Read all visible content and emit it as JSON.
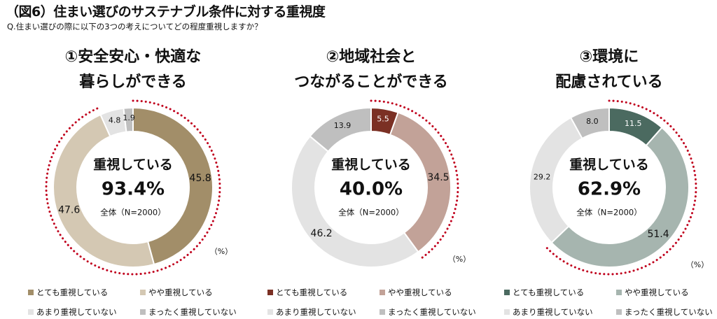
{
  "title": "（図6）住まい選びのサステナブル条件に対する重視度",
  "question": "Q.住まい選びの際に以下の3つの考えについてどの程度重視しますか？",
  "chart_data": [
    {
      "type": "pie",
      "title_lines": [
        "①安全安心・快適な",
        "暮らしができる"
      ],
      "center_label": "重視している",
      "center_value": "93.4%",
      "center_sub": "全体（N=2000）",
      "unit": "（%）",
      "categories": [
        "とても重視している",
        "やや重視している",
        "あまり重視していない",
        "まったく重視していない"
      ],
      "values": [
        45.8,
        47.6,
        4.8,
        1.9
      ],
      "colors": [
        "#a28e69",
        "#d4c8b3",
        "#e3e3e3",
        "#bfbfbf"
      ],
      "label_colors": [
        "#111111",
        "#111111",
        "#111111",
        "#111111"
      ]
    },
    {
      "type": "pie",
      "title_lines": [
        "②地域社会と",
        "つながることができる"
      ],
      "center_label": "重視している",
      "center_value": "40.0%",
      "center_sub": "全体（N=2000）",
      "unit": "（%）",
      "categories": [
        "とても重視している",
        "やや重視している",
        "あまり重視していない",
        "まったく重視していない"
      ],
      "values": [
        5.5,
        34.5,
        46.2,
        13.9
      ],
      "colors": [
        "#7b3024",
        "#c2a298",
        "#e3e3e3",
        "#bfbfbf"
      ],
      "label_colors": [
        "#ffffff",
        "#111111",
        "#111111",
        "#111111"
      ]
    },
    {
      "type": "pie",
      "title_lines": [
        "③環境に",
        "配慮されている"
      ],
      "center_label": "重視している",
      "center_value": "62.9%",
      "center_sub": "全体（N=2000）",
      "unit": "（%）",
      "categories": [
        "とても重視している",
        "やや重視している",
        "あまり重視していない",
        "まったく重視していない"
      ],
      "values": [
        11.5,
        51.4,
        29.2,
        8.0
      ],
      "colors": [
        "#4b6a60",
        "#a6b5af",
        "#e3e3e3",
        "#bfbfbf"
      ],
      "label_colors": [
        "#ffffff",
        "#111111",
        "#111111",
        "#111111"
      ]
    }
  ],
  "legend": [
    [
      "とても重視している",
      "やや重視している",
      "あまり重視していない",
      "まったく重視していない"
    ],
    [
      "とても重視している",
      "やや重視している",
      "あまり重視していない",
      "まったく重視していない"
    ],
    [
      "とても重視している",
      "やや重視している",
      "あまり重視していない",
      "まったく重視していない"
    ]
  ],
  "dotted_arc_color": "#c0001d"
}
